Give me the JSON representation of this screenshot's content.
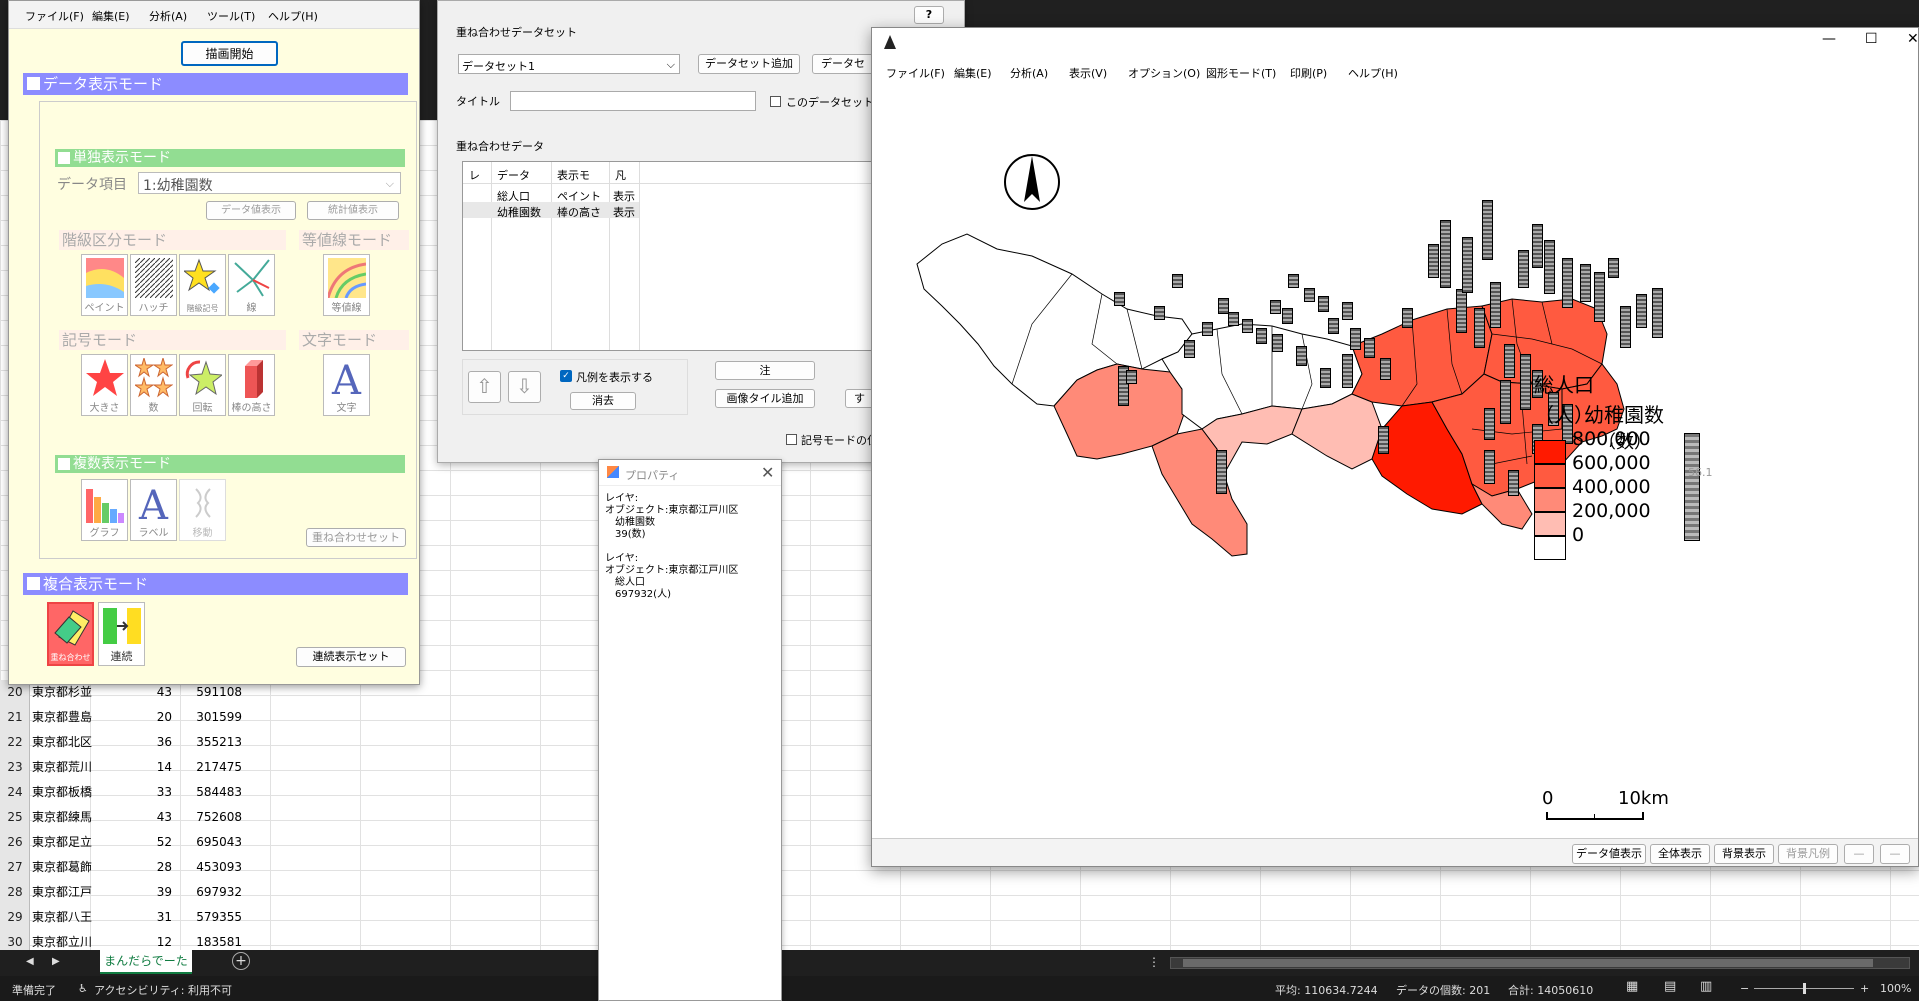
{
  "excel": {
    "rows": [
      {
        "num": "20",
        "name": "東京都杉並",
        "a": "43",
        "b": "591108"
      },
      {
        "num": "21",
        "name": "東京都豊島",
        "a": "20",
        "b": "301599"
      },
      {
        "num": "22",
        "name": "東京都北区",
        "a": "36",
        "b": "355213"
      },
      {
        "num": "23",
        "name": "東京都荒川",
        "a": "14",
        "b": "217475"
      },
      {
        "num": "24",
        "name": "東京都板橋",
        "a": "33",
        "b": "584483"
      },
      {
        "num": "25",
        "name": "東京都練馬",
        "a": "43",
        "b": "752608"
      },
      {
        "num": "26",
        "name": "東京都足立",
        "a": "52",
        "b": "695043"
      },
      {
        "num": "27",
        "name": "東京都葛飾",
        "a": "28",
        "b": "453093"
      },
      {
        "num": "28",
        "name": "東京都江戸",
        "a": "39",
        "b": "697932"
      },
      {
        "num": "29",
        "name": "東京都八王",
        "a": "31",
        "b": "579355"
      },
      {
        "num": "30",
        "name": "東京都立川",
        "a": "12",
        "b": "183581"
      }
    ],
    "sheet_tab": "まんだらでーた",
    "status": {
      "ready": "準備完了",
      "accessibility": "アクセシビリティ: 利用不可",
      "average": "平均: 110634.7244",
      "count": "データの個数: 201",
      "sum": "合計: 14050610",
      "zoom": "100%"
    }
  },
  "ctrl": {
    "menu": [
      "ファイル(F)",
      "編集(E)",
      "分析(A)",
      "ツール(T)",
      "ヘルプ(H)"
    ],
    "start_button": "描画開始",
    "section_display": "データ表示モード",
    "section_single": "単独表示モード",
    "data_item_label": "データ項目",
    "data_item_value": "1:幼稚園数",
    "btn_data_values": "データ値表示",
    "btn_stats": "統計値表示",
    "group_class": "階級区分モード",
    "group_contour": "等値線モード",
    "group_symbol": "記号モード",
    "group_text": "文字モード",
    "tools_class": [
      "ペイント",
      "ハッチ",
      "階級記号",
      "線"
    ],
    "tool_contour": "等値線",
    "tools_symbol": [
      "大きさ",
      "数",
      "回転",
      "棒の高さ"
    ],
    "tool_text": "文字",
    "section_multi": "複数表示モード",
    "tools_multi": [
      "グラフ",
      "ラベル",
      "移動"
    ],
    "btn_overlay_set": "重ね合わせセット",
    "section_composite": "複合表示モード",
    "tools_composite": [
      "重ね合わせ",
      "連続"
    ],
    "btn_series_set": "連続表示セット"
  },
  "overlay": {
    "help": "?",
    "title_label": "重ね合わせデータセット",
    "dataset_value": "データセット1",
    "btn_add_dataset": "データセット追加",
    "btn_dataset2": "データセ",
    "caption_label": "タイトル",
    "check_dataset": "このデータセットを",
    "data_label": "重ね合わせデータ",
    "headers": [
      "レ",
      "データ",
      "表示モ",
      "凡"
    ],
    "rows": [
      {
        "data": "総人口",
        "mode": "ペイント",
        "legend": "表示"
      },
      {
        "data": "幼稚園数",
        "mode": "棒の高さ",
        "legend": "表示"
      }
    ],
    "check_legend": "凡例を表示する",
    "btn_delete": "消去",
    "btn_note": "注",
    "btn_image_tile": "画像タイル追加",
    "btn_more": "す",
    "check_symbol": "記号モードの位"
  },
  "prop": {
    "title": "プロパティ",
    "lines": [
      "レイヤ:",
      "オブジェクト:東京都江戸川区",
      "　幼稚園数",
      "　39(数)",
      "",
      "レイヤ:",
      "オブジェクト:東京都江戸川区",
      "　総人口",
      "　697932(人)"
    ]
  },
  "map": {
    "menu": [
      "ファイル(F)",
      "編集(E)",
      "分析(A)",
      "表示(V)",
      "オプション(O)",
      "図形モード(T)",
      "印刷(P)",
      "ヘルプ(H)"
    ],
    "legend_title1": "総人口",
    "legend_title2": "（人）",
    "legend_title3": "幼稚園数",
    "legend_title4": "（数）",
    "legend_values": [
      "800,000",
      "600,000",
      "400,000",
      "200,000",
      "0"
    ],
    "legend_bar_value": "56.1",
    "legend_colors": [
      "#ff1a00",
      "#ff5a40",
      "#ff8a78",
      "#ffbdb3",
      "#ffffff"
    ],
    "scale_start": "0",
    "scale_end": "10km",
    "bottom_buttons": [
      "データ値表示",
      "全体表示",
      "背景表示",
      "背景凡例",
      "—",
      "—"
    ]
  }
}
